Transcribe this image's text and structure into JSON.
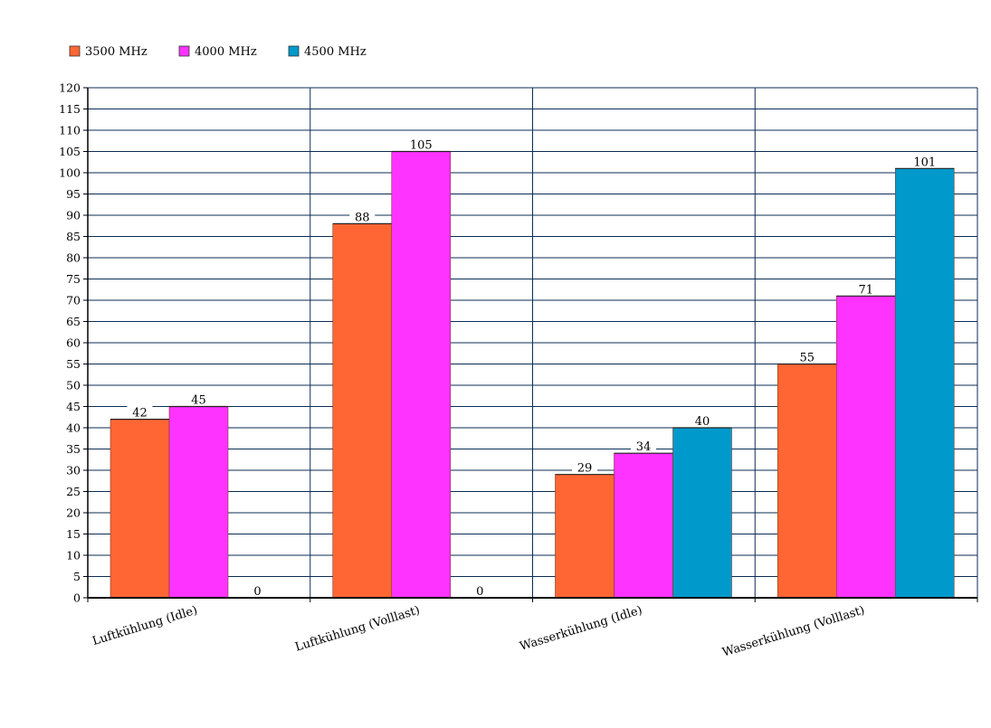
{
  "chart_data": {
    "type": "bar",
    "title": "",
    "xlabel": "",
    "ylabel": "",
    "ylim": [
      0,
      120
    ],
    "ytick_step": 5,
    "grid": true,
    "legend_position": "top-left",
    "categories": [
      "Luftkühlung (Idle)",
      "Luftkühlung (Volllast)",
      "Wasserkühlung (Idle)",
      "Wasserkühlung (Volllast)"
    ],
    "series": [
      {
        "name": "3500 MHz",
        "color": "#FF6633",
        "values": [
          42,
          88,
          29,
          55
        ]
      },
      {
        "name": "4000 MHz",
        "color": "#FF33FF",
        "values": [
          45,
          105,
          34,
          71
        ]
      },
      {
        "name": "4500 MHz",
        "color": "#0099CC",
        "values": [
          0,
          0,
          40,
          101
        ]
      }
    ]
  }
}
